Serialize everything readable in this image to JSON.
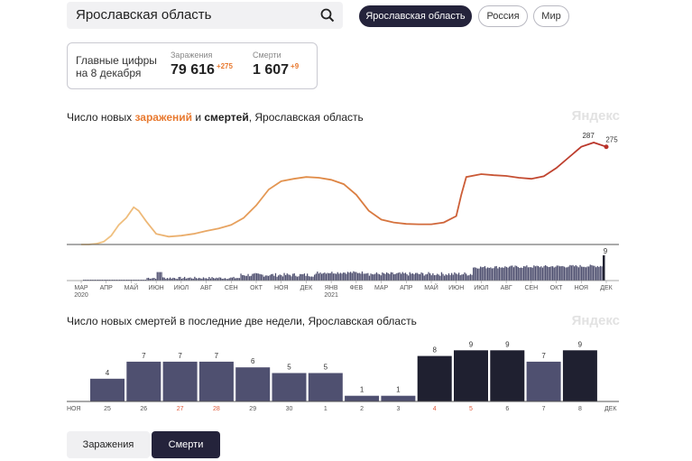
{
  "search": {
    "value": "Ярославская область"
  },
  "region_tabs": [
    {
      "label": "Ярославская область",
      "active": true
    },
    {
      "label": "Россия",
      "active": false
    },
    {
      "label": "Мир",
      "active": false
    }
  ],
  "summary": {
    "title_line1": "Главные цифры",
    "title_line2": "на 8 декабря",
    "cases_label": "Заражения",
    "cases_value": "79 616",
    "cases_delta": "+275",
    "deaths_label": "Смерти",
    "deaths_value": "1 607",
    "deaths_delta": "+9"
  },
  "chart1": {
    "title_pre": "Число новых ",
    "title_cases": "заражений",
    "title_mid": " и ",
    "title_deaths": "смертей",
    "title_post": ", Ярославская область",
    "watermark": "Яндекс"
  },
  "chart2": {
    "title": "Число новых смертей в последние две недели, Ярославская область",
    "watermark": "Яндекс"
  },
  "toggles": {
    "cases": "Заражения",
    "deaths": "Смерти"
  },
  "colors": {
    "dark": "#24233b",
    "accent": "#e8792f",
    "bar_light": "#4f5070",
    "bar_dark": "#1f2030",
    "axis_red": "#e05a3a"
  },
  "chart_data": [
    {
      "type": "line",
      "title": "Число новых заражений и смертей, Ярославская область",
      "x_labels": [
        "МАР 2020",
        "АПР",
        "МАЙ",
        "ИЮН",
        "ИЮЛ",
        "АВГ",
        "СЕН",
        "ОКТ",
        "НОЯ",
        "ДЕК",
        "ЯНВ 2021",
        "ФЕВ",
        "МАР",
        "АПР",
        "МАЙ",
        "ИЮН",
        "ИЮЛ",
        "АВГ",
        "СЕН",
        "ОКТ",
        "НОЯ",
        "ДЕК"
      ],
      "series": [
        {
          "name": "заражения",
          "color_gradient": [
            "#f0c080",
            "#e8792f",
            "#c0392b"
          ],
          "points": [
            [
              0,
              0
            ],
            [
              0.3,
              0
            ],
            [
              0.6,
              2
            ],
            [
              0.9,
              8
            ],
            [
              1.2,
              25
            ],
            [
              1.5,
              55
            ],
            [
              1.8,
              75
            ],
            [
              2.1,
              105
            ],
            [
              2.3,
              95
            ],
            [
              2.6,
              65
            ],
            [
              3.0,
              30
            ],
            [
              3.5,
              22
            ],
            [
              4.0,
              25
            ],
            [
              4.5,
              30
            ],
            [
              5.0,
              38
            ],
            [
              5.5,
              45
            ],
            [
              6.0,
              55
            ],
            [
              6.5,
              75
            ],
            [
              7.0,
              110
            ],
            [
              7.5,
              155
            ],
            [
              8.0,
              178
            ],
            [
              8.5,
              185
            ],
            [
              9.0,
              190
            ],
            [
              9.5,
              188
            ],
            [
              10.0,
              182
            ],
            [
              10.5,
              170
            ],
            [
              11.0,
              140
            ],
            [
              11.5,
              95
            ],
            [
              12.0,
              70
            ],
            [
              12.5,
              62
            ],
            [
              13.0,
              58
            ],
            [
              13.5,
              57
            ],
            [
              14.0,
              57
            ],
            [
              14.5,
              62
            ],
            [
              15.0,
              80
            ],
            [
              15.2,
              140
            ],
            [
              15.4,
              190
            ],
            [
              16.0,
              198
            ],
            [
              16.5,
              195
            ],
            [
              17.0,
              193
            ],
            [
              17.5,
              188
            ],
            [
              18.0,
              185
            ],
            [
              18.5,
              192
            ],
            [
              19.0,
              215
            ],
            [
              19.5,
              245
            ],
            [
              20.0,
              275
            ],
            [
              20.5,
              287
            ],
            [
              21.0,
              275
            ]
          ],
          "annotations": [
            {
              "x": 20.5,
              "label": "287"
            },
            {
              "x": 21.0,
              "label": "275"
            }
          ]
        },
        {
          "name": "смерти",
          "color": "#4f5070",
          "last_value": 9,
          "annotations": [
            {
              "label": "9"
            }
          ]
        }
      ]
    },
    {
      "type": "bar",
      "title": "Число новых смертей в последние две недели, Ярославская область",
      "categories": [
        "25",
        "26",
        "27",
        "28",
        "29",
        "30",
        "1",
        "2",
        "3",
        "4",
        "5",
        "6",
        "7",
        "8"
      ],
      "values": [
        4,
        7,
        7,
        7,
        6,
        5,
        5,
        1,
        1,
        8,
        9,
        9,
        7,
        9
      ],
      "highlight": [
        false,
        false,
        false,
        false,
        false,
        false,
        false,
        false,
        false,
        true,
        true,
        true,
        false,
        true
      ],
      "weekend": [
        false,
        false,
        true,
        true,
        false,
        false,
        false,
        false,
        false,
        true,
        true,
        false,
        false,
        false
      ],
      "month_start": "НОЯ",
      "month_end": "ДЕК",
      "ylim": [
        0,
        10
      ]
    }
  ]
}
